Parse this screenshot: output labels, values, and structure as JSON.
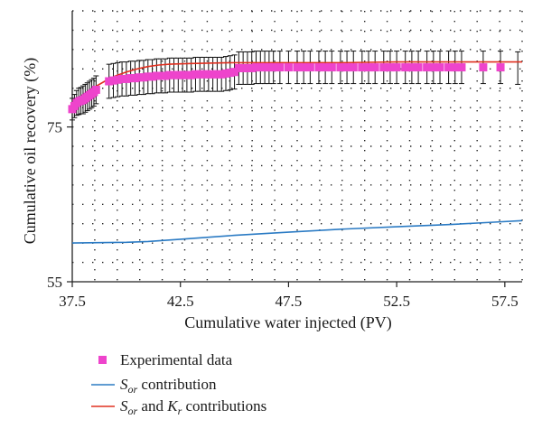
{
  "chart_data": {
    "type": "line",
    "title": "",
    "xlabel": "Cumulative water injected (PV)",
    "ylabel": "Cumulative oil recovery (%)",
    "xlim": [
      37.5,
      58.3
    ],
    "ylim": [
      55,
      90
    ],
    "x_ticks": [
      37.5,
      42.5,
      47.5,
      52.5,
      57.5
    ],
    "x_tick_labels": [
      "37.5",
      "42.5",
      "47.5",
      "52.5",
      "57.5"
    ],
    "y_ticks": [
      55,
      75
    ],
    "y_tick_labels": [
      "55",
      "75"
    ],
    "grid": "dotted",
    "legend_position": "bottom",
    "series": [
      {
        "name": "Experimental data",
        "kind": "scatter",
        "color": "#ee44cc",
        "x": [
          37.5,
          37.6,
          37.7,
          37.8,
          37.9,
          38.0,
          38.1,
          38.2,
          38.3,
          38.4,
          38.5,
          38.6,
          39.2,
          39.4,
          39.6,
          39.8,
          40.0,
          40.2,
          40.4,
          40.6,
          40.8,
          41.0,
          41.2,
          41.4,
          41.6,
          41.8,
          42.0,
          42.2,
          42.4,
          42.6,
          42.8,
          43.0,
          43.2,
          43.4,
          43.6,
          43.8,
          44.0,
          44.2,
          44.4,
          44.6,
          44.8,
          45.0,
          45.2,
          45.4,
          45.6,
          45.8,
          46.0,
          46.2,
          46.4,
          46.6,
          46.8,
          47.1,
          47.5,
          47.9,
          48.2,
          48.5,
          48.9,
          49.2,
          49.5,
          49.9,
          50.2,
          50.5,
          50.9,
          51.2,
          51.5,
          51.9,
          52.2,
          52.5,
          52.9,
          53.2,
          53.5,
          53.9,
          54.2,
          54.5,
          54.9,
          55.2,
          55.5,
          56.5,
          57.3
        ],
        "y": [
          77.3,
          77.7,
          78.1,
          78.3,
          78.4,
          78.5,
          78.7,
          78.9,
          79.1,
          79.3,
          79.5,
          79.8,
          80.9,
          81.0,
          81.1,
          81.2,
          81.2,
          81.3,
          81.3,
          81.4,
          81.4,
          81.5,
          81.5,
          81.6,
          81.6,
          81.6,
          81.7,
          81.7,
          81.7,
          81.7,
          81.7,
          81.7,
          81.8,
          81.8,
          81.8,
          81.8,
          81.8,
          81.8,
          81.8,
          81.9,
          82.0,
          82.1,
          82.6,
          82.6,
          82.6,
          82.6,
          82.7,
          82.7,
          82.7,
          82.7,
          82.7,
          82.7,
          82.7,
          82.7,
          82.7,
          82.7,
          82.7,
          82.7,
          82.7,
          82.7,
          82.7,
          82.7,
          82.7,
          82.7,
          82.7,
          82.7,
          82.7,
          82.7,
          82.7,
          82.7,
          82.7,
          82.7,
          82.7,
          82.7,
          82.7,
          82.7,
          82.7,
          82.7,
          82.7
        ],
        "error": [
          1.4,
          1.5,
          1.6,
          1.7,
          1.7,
          1.8,
          1.8,
          1.8,
          1.8,
          1.8,
          1.8,
          1.8,
          2.2,
          2.2,
          2.2,
          2.2,
          2.2,
          2.2,
          2.2,
          2.2,
          2.2,
          2.2,
          2.2,
          2.2,
          2.2,
          2.2,
          2.2,
          2.2,
          2.2,
          2.2,
          2.2,
          2.2,
          2.2,
          2.2,
          2.2,
          2.2,
          2.2,
          2.2,
          2.2,
          2.2,
          2.2,
          2.2,
          2.1,
          2.1,
          2.1,
          2.1,
          2.1,
          2.1,
          2.1,
          2.1,
          2.1,
          2.1,
          2.1,
          2.1,
          2.1,
          2.1,
          2.1,
          2.1,
          2.1,
          2.1,
          2.1,
          2.1,
          2.1,
          2.1,
          2.1,
          2.1,
          2.1,
          2.1,
          2.1,
          2.1,
          2.1,
          2.1,
          2.1,
          2.1,
          2.1,
          2.1,
          2.1,
          2.1,
          2.1
        ],
        "error_only_x": [
          58.1
        ],
        "error_only_y": [
          82.6
        ],
        "error_only_err": [
          2.1
        ]
      },
      {
        "name": "S_or contribution",
        "kind": "line",
        "color": "#2b7bc4",
        "x": [
          37.5,
          40.0,
          41.0,
          42.5,
          45.0,
          47.5,
          50.0,
          52.5,
          55.0,
          57.0,
          58.3
        ],
        "y": [
          60.0,
          60.1,
          60.2,
          60.5,
          61.0,
          61.4,
          61.8,
          62.1,
          62.4,
          62.7,
          62.9
        ]
      },
      {
        "name": "S_or and K_r contributions",
        "kind": "line",
        "color": "#e03020",
        "x": [
          37.5,
          37.8,
          38.1,
          38.5,
          39.0,
          39.5,
          40.0,
          40.5,
          41.0,
          41.5,
          42.0,
          43.0,
          45.0,
          47.5,
          50.0,
          52.5,
          55.0,
          57.5,
          58.3
        ],
        "y": [
          77.4,
          78.4,
          79.2,
          80.1,
          80.9,
          81.6,
          82.1,
          82.5,
          82.8,
          83.0,
          83.1,
          83.2,
          83.3,
          83.3,
          83.3,
          83.4,
          83.4,
          83.4,
          83.4
        ]
      }
    ],
    "legend": [
      {
        "key": "exp",
        "label": "Experimental data",
        "marker": "square",
        "color": "#ee44cc"
      },
      {
        "key": "sor",
        "label_main": "S",
        "label_sub": "or",
        "label_rest": " contribution",
        "marker": "line",
        "color": "#2b7bc4"
      },
      {
        "key": "sorkr",
        "label_main": "S",
        "label_sub": "or",
        "label_mid": " and ",
        "label_main2": "K",
        "label_sub2": "r",
        "label_rest": " contributions",
        "marker": "line",
        "color": "#e03020"
      }
    ]
  }
}
